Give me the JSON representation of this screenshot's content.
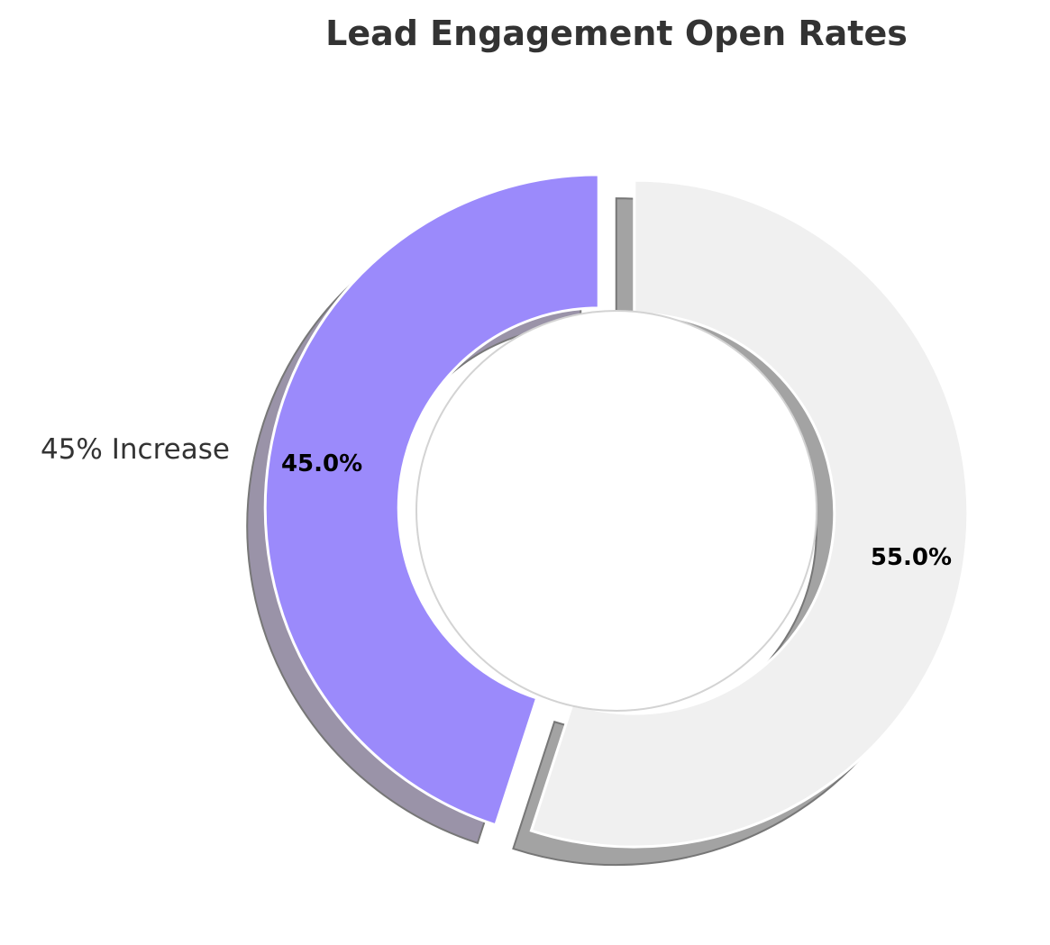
{
  "chart_data": {
    "type": "pie",
    "variant": "donut",
    "title": "Lead Engagement Open Rates",
    "slices": [
      {
        "name": "45% Increase",
        "value": 45.0,
        "pct_label": "45.0%",
        "color": "#9b8afb",
        "shadow_color": "#9a93a8",
        "show_label": true,
        "exploded": true
      },
      {
        "name": "",
        "value": 55.0,
        "pct_label": "55.0%",
        "color": "#f0f0f0",
        "shadow_color": "#a3a3a3",
        "show_label": false,
        "exploded": true
      }
    ],
    "start_angle_deg": 90,
    "direction": "counterclockwise",
    "shadow": true,
    "text_color": "#333333",
    "pct_color": "#000000",
    "edge_color": "#ffffff",
    "center_color": "#ffffff",
    "center_edge_color": "#d3d3d3"
  }
}
